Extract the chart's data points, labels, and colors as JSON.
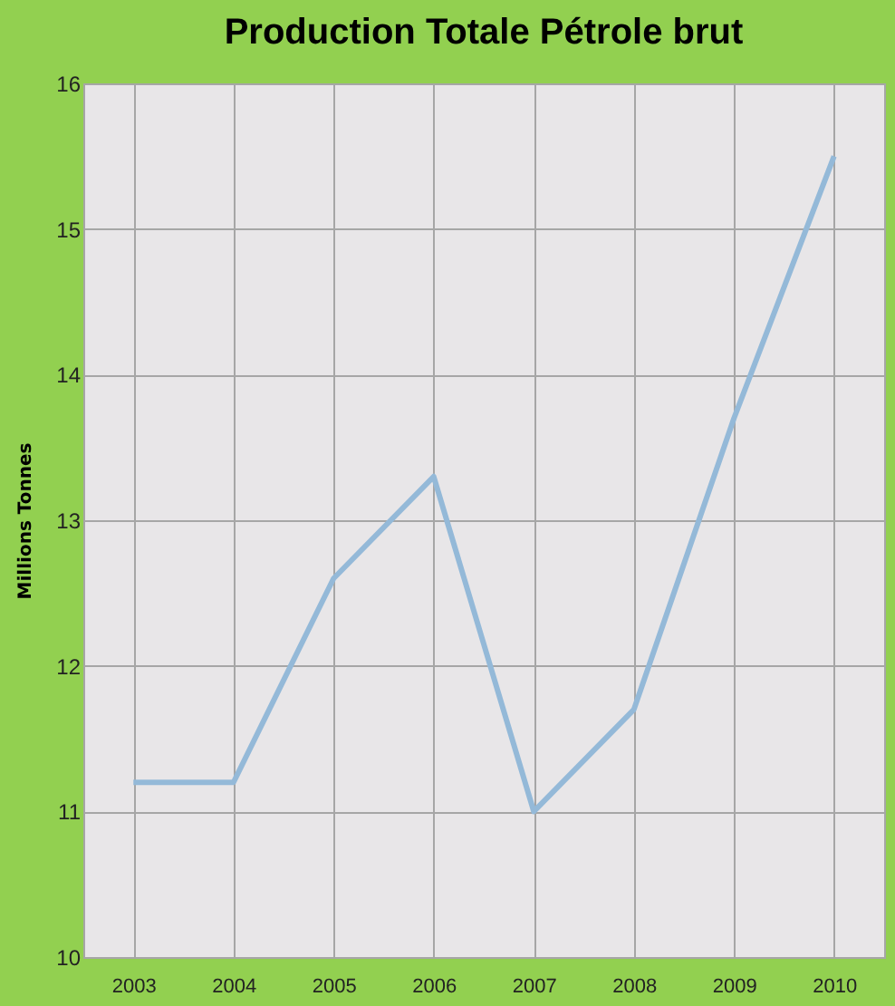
{
  "chart_data": {
    "type": "line",
    "title": "Production Totale Pétrole brut",
    "ylabel": "Millions Tonnes",
    "categories": [
      "2003",
      "2004",
      "2005",
      "2006",
      "2007",
      "2008",
      "2009",
      "2010"
    ],
    "series": [
      {
        "color": "#94b9d8",
        "values": [
          11.2,
          11.2,
          12.6,
          13.3,
          11.0,
          11.7,
          13.7,
          15.5
        ]
      }
    ],
    "ylim": [
      10,
      16
    ],
    "yticks": [
      10,
      11,
      12,
      13,
      14,
      15,
      16
    ],
    "grid": true,
    "marker": "none",
    "line_style": "solid"
  }
}
